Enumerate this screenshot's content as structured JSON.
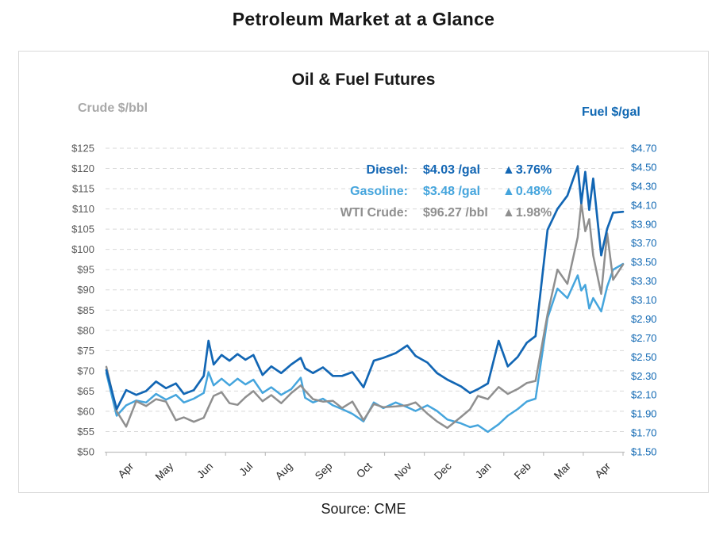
{
  "page": {
    "title": "Petroleum Market at a Glance",
    "source": "Source: CME"
  },
  "chart": {
    "title": "Oil & Fuel Futures",
    "left_axis_title": "Crude $/bbl",
    "right_axis_title": "Fuel $/gal",
    "colors": {
      "diesel": "#1266b4",
      "gasoline": "#45a5dd",
      "wti": "#8f8f8f",
      "grid": "#d9d9d9",
      "axis_line": "#bfbfbf",
      "left_tick_label": "#595959",
      "left_axis_title": "#a9a9a9",
      "right_tick_label": "#1068b3",
      "x_tick_label": "#262626"
    },
    "legend": [
      {
        "label": "Diesel:",
        "value": "$4.03 /gal",
        "arrow": "▲",
        "change": "3.76%",
        "color": "#1266b4"
      },
      {
        "label": "Gasoline:",
        "value": "$3.48 /gal",
        "arrow": "▲",
        "change": "0.48%",
        "color": "#45a5dd"
      },
      {
        "label": "WTI Crude:",
        "value": "$96.27 /bbl",
        "arrow": "▲",
        "change": "1.98%",
        "color": "#8f8f8f"
      }
    ]
  },
  "chart_data": {
    "type": "line",
    "title": "Oil & Fuel Futures",
    "grid": "horizontal-dashed",
    "legend_position": "top-right-inside",
    "x_note": "t = months from start; axis category labels are centered within each unit interval [t, t+1]",
    "x_range": [
      0,
      13
    ],
    "x_tick_labels": [
      "Apr",
      "May",
      "Jun",
      "Jul",
      "Aug",
      "Sep",
      "Oct",
      "Nov",
      "Dec",
      "Jan",
      "Feb",
      "Mar",
      "Apr"
    ],
    "left_axis": {
      "title": "Crude $/bbl",
      "min": 50,
      "max": 125,
      "step": 5,
      "tick_labels": [
        "$125",
        "$120",
        "$115",
        "$110",
        "$105",
        "$100",
        "$95",
        "$90",
        "$85",
        "$80",
        "$75",
        "$70",
        "$65",
        "$60",
        "$55",
        "$50"
      ]
    },
    "right_axis": {
      "title": "Fuel $/gal",
      "min": 1.5,
      "max": 4.7,
      "step": 0.2,
      "tick_labels": [
        "$4.70",
        "$4.50",
        "$4.30",
        "$4.10",
        "$3.90",
        "$3.70",
        "$3.50",
        "$3.30",
        "$3.10",
        "$2.90",
        "$2.70",
        "$2.50",
        "$2.30",
        "$2.10",
        "$1.90",
        "$1.70",
        "$1.50"
      ]
    },
    "x": [
      0.0,
      0.26,
      0.5,
      0.75,
      1.0,
      1.25,
      1.5,
      1.75,
      1.95,
      2.2,
      2.45,
      2.57,
      2.7,
      2.9,
      3.1,
      3.3,
      3.5,
      3.7,
      3.93,
      4.15,
      4.4,
      4.65,
      4.89,
      5.0,
      5.2,
      5.45,
      5.7,
      5.93,
      6.19,
      6.47,
      6.73,
      6.97,
      7.28,
      7.57,
      7.78,
      8.08,
      8.32,
      8.58,
      8.92,
      9.15,
      9.35,
      9.6,
      9.87,
      10.1,
      10.35,
      10.58,
      10.8,
      11.1,
      11.35,
      11.6,
      11.86,
      11.95,
      12.05,
      12.15,
      12.25,
      12.45,
      12.6,
      12.75,
      13.0
    ],
    "series": [
      {
        "name": "Diesel",
        "axis": "right",
        "unit": "$/gal",
        "color": "#1266b4",
        "last_value": 4.03,
        "change_pct": 3.76,
        "values": [
          2.36,
          1.95,
          2.15,
          2.1,
          2.14,
          2.24,
          2.17,
          2.22,
          2.11,
          2.15,
          2.3,
          2.67,
          2.42,
          2.52,
          2.46,
          2.53,
          2.47,
          2.52,
          2.31,
          2.4,
          2.33,
          2.42,
          2.49,
          2.38,
          2.33,
          2.39,
          2.3,
          2.3,
          2.34,
          2.18,
          2.46,
          2.49,
          2.54,
          2.62,
          2.51,
          2.44,
          2.33,
          2.26,
          2.19,
          2.12,
          2.16,
          2.22,
          2.67,
          2.4,
          2.5,
          2.65,
          2.72,
          3.84,
          4.06,
          4.2,
          4.51,
          4.12,
          4.45,
          4.05,
          4.38,
          3.57,
          3.85,
          4.02,
          4.03
        ]
      },
      {
        "name": "Gasoline",
        "axis": "right",
        "unit": "$/gal",
        "color": "#45a5dd",
        "last_value": 3.48,
        "change_pct": 0.48,
        "values": [
          2.33,
          1.88,
          1.99,
          2.04,
          2.02,
          2.11,
          2.05,
          2.1,
          2.02,
          2.06,
          2.12,
          2.34,
          2.2,
          2.27,
          2.2,
          2.27,
          2.21,
          2.26,
          2.12,
          2.18,
          2.1,
          2.16,
          2.28,
          2.07,
          2.02,
          2.06,
          1.99,
          1.95,
          1.9,
          1.82,
          2.02,
          1.96,
          2.02,
          1.97,
          1.93,
          1.99,
          1.93,
          1.84,
          1.8,
          1.76,
          1.78,
          1.71,
          1.79,
          1.88,
          1.95,
          2.03,
          2.06,
          2.91,
          3.22,
          3.12,
          3.36,
          3.2,
          3.26,
          3.01,
          3.12,
          2.98,
          3.24,
          3.42,
          3.48
        ]
      },
      {
        "name": "WTI Crude",
        "axis": "left",
        "unit": "$/bbl",
        "color": "#8f8f8f",
        "last_value": 96.27,
        "change_pct": 1.98,
        "values": [
          71.0,
          60.0,
          56.2,
          62.5,
          61.3,
          63.0,
          62.4,
          57.8,
          58.5,
          57.4,
          58.4,
          61.0,
          63.8,
          64.7,
          62.0,
          61.6,
          63.5,
          65.0,
          62.5,
          64.0,
          62.0,
          64.5,
          66.4,
          65.1,
          63.0,
          62.4,
          62.6,
          60.8,
          62.4,
          57.8,
          61.8,
          61.0,
          61.2,
          61.5,
          62.2,
          59.4,
          57.5,
          55.9,
          58.6,
          60.5,
          63.8,
          63.0,
          66.0,
          64.3,
          65.5,
          67.0,
          67.5,
          84.0,
          95.0,
          91.5,
          103.0,
          111.5,
          104.5,
          107.5,
          98.5,
          89.0,
          104.0,
          92.5,
          96.27
        ]
      }
    ]
  }
}
